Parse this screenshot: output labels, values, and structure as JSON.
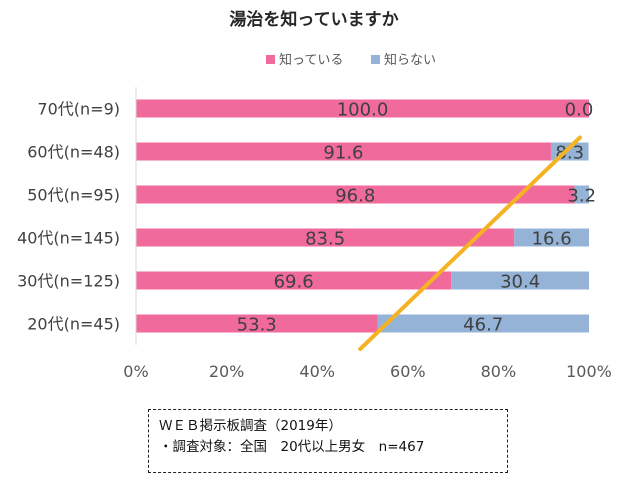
{
  "chart_data": {
    "type": "bar",
    "orientation": "horizontal",
    "stacked": true,
    "percent_stacked": true,
    "title": "湯治を知っていますか",
    "categories": [
      "70代(n=9)",
      "60代(n=48)",
      "50代(n=95)",
      "40代(n=145)",
      "30代(n=125)",
      "20代(n=45)"
    ],
    "series": [
      {
        "name": "知っている",
        "color": "#f06a9b",
        "values": [
          100.0,
          91.6,
          96.8,
          83.5,
          69.6,
          53.3
        ]
      },
      {
        "name": "知らない",
        "color": "#95b3d7",
        "values": [
          0.0,
          8.3,
          3.2,
          16.6,
          30.4,
          46.7
        ]
      }
    ],
    "data_labels": [
      [
        "100.0",
        "91.6",
        "96.8",
        "83.5",
        "69.6",
        "53.3"
      ],
      [
        "0.0",
        "8.3",
        "3.2",
        "16.6",
        "30.4",
        "46.7"
      ]
    ],
    "xlim": [
      0,
      100
    ],
    "x_ticks": [
      "0%",
      "20%",
      "40%",
      "60%",
      "80%",
      "100%"
    ],
    "legend_position": "top",
    "grid": false,
    "annotation": {
      "type": "trend-line",
      "color": "#f5b324",
      "from": [
        49.5,
        "below-20代"
      ],
      "to": [
        98,
        "60代"
      ]
    }
  },
  "source_note": {
    "line1": "ＷＥＢ掲示板調査（2019年）",
    "line2": "・調査対象：全国　20代以上男女　n=467"
  }
}
